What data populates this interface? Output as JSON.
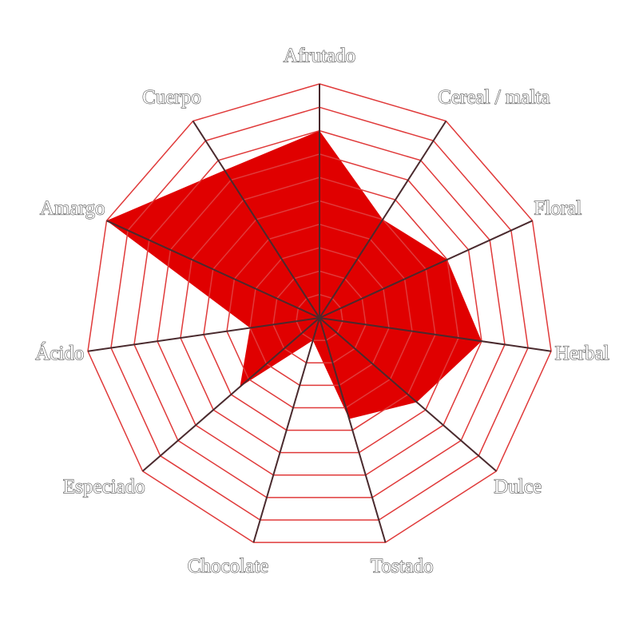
{
  "chart_data": {
    "type": "radar",
    "categories": [
      "Afrutado",
      "Cereal / malta",
      "Floral",
      "Herbal",
      "Dulce",
      "Tostado",
      "Chocolate",
      "Especiado",
      "Ácido",
      "Amargo",
      "Cuerpo"
    ],
    "values": [
      8,
      5,
      6,
      7,
      5.5,
      4.5,
      1,
      4.5,
      3,
      10,
      7.5
    ],
    "color": "#e00000",
    "grid_color": "#e03a3a",
    "spoke_color": "#4a2a2e",
    "rlim": [
      0,
      10
    ],
    "rticks": [
      1,
      2,
      3,
      4,
      5,
      6,
      7,
      8,
      9,
      10
    ]
  }
}
